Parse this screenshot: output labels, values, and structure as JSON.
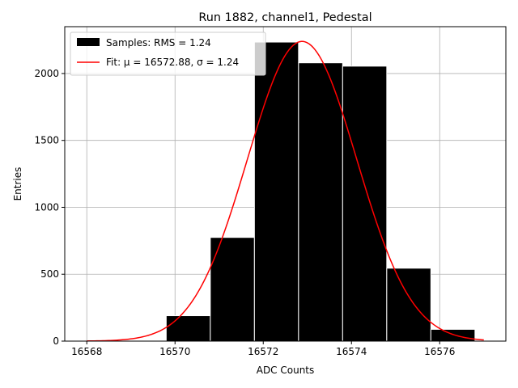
{
  "chart_data": {
    "type": "bar",
    "title": "Run 1882, channel1, Pedestal",
    "xlabel": "ADC Counts",
    "ylabel": "Entries",
    "xlim": [
      16567.5,
      16577.5
    ],
    "ylim": [
      0,
      2350
    ],
    "xticks": [
      16568,
      16570,
      16572,
      16574,
      16576
    ],
    "yticks": [
      0,
      500,
      1000,
      1500,
      2000
    ],
    "grid": true,
    "legend_position": "top-left",
    "bins": [
      {
        "left": 16569.8,
        "right": 16570.8,
        "value": 190
      },
      {
        "left": 16570.8,
        "right": 16571.8,
        "value": 775
      },
      {
        "left": 16571.8,
        "right": 16572.8,
        "value": 2235
      },
      {
        "left": 16572.8,
        "right": 16573.8,
        "value": 2080
      },
      {
        "left": 16573.8,
        "right": 16574.8,
        "value": 2055
      },
      {
        "left": 16574.8,
        "right": 16575.8,
        "value": 545
      },
      {
        "left": 16575.8,
        "right": 16576.8,
        "value": 88
      }
    ],
    "fit": {
      "mu": 16572.88,
      "sigma": 1.24,
      "peak": 2240,
      "x_range": [
        16568,
        16577
      ]
    },
    "legend": [
      {
        "label": "Samples: RMS = 1.24",
        "kind": "patch",
        "color": "#000000"
      },
      {
        "label": "Fit: μ = 16572.88, σ = 1.24",
        "kind": "line",
        "color": "#ff0000"
      }
    ],
    "colors": {
      "bars": "#000000",
      "bar_edge": "#ffffff",
      "fit": "#ff0000",
      "grid": "#b0b0b0"
    }
  }
}
